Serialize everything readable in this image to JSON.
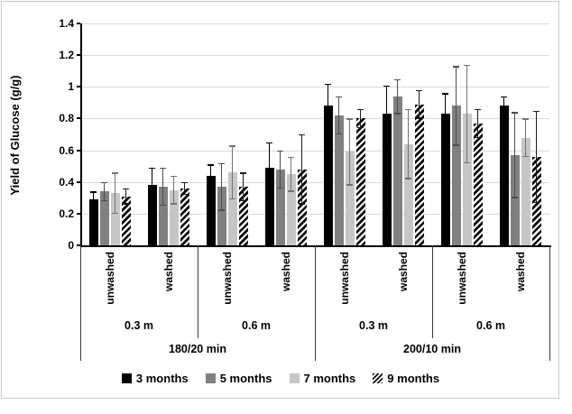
{
  "chart_data": {
    "type": "bar",
    "title": "",
    "ylabel": "Yield of Glucose (g/g)",
    "xlabel": "",
    "ylim": [
      0,
      1.4
    ],
    "ytick_step": 0.2,
    "ytick_labels": [
      "0",
      "0.2",
      "0.4",
      "0.6",
      "0.8",
      "1",
      "1.2",
      "1.4"
    ],
    "grid": "horizontal",
    "legend_position": "bottom",
    "error_bars": true,
    "category_levels": {
      "level1_wash": [
        "unwashed",
        "washed",
        "unwashed",
        "washed",
        "unwashed",
        "washed",
        "unwashed",
        "washed"
      ],
      "level2_height": [
        "0.3 m",
        "0.6 m",
        "0.3 m",
        "0.6 m"
      ],
      "level3_pretreatment": [
        "180/20 min",
        "200/10 min"
      ]
    },
    "series": [
      {
        "name": "3 months",
        "color": "#000000",
        "pattern": "solid",
        "error_color": "#000000",
        "values": [
          0.29,
          0.38,
          0.44,
          0.49,
          0.88,
          0.83,
          0.83,
          0.88
        ],
        "errors": [
          0.05,
          0.11,
          0.07,
          0.16,
          0.14,
          0.18,
          0.13,
          0.06
        ]
      },
      {
        "name": "5 months",
        "color": "#808080",
        "pattern": "solid",
        "error_color": "#4d4d4d",
        "values": [
          0.34,
          0.37,
          0.37,
          0.48,
          0.82,
          0.94,
          0.88,
          0.57
        ],
        "errors": [
          0.06,
          0.12,
          0.15,
          0.12,
          0.12,
          0.11,
          0.25,
          0.27
        ]
      },
      {
        "name": "7 months",
        "color": "#c6c6c6",
        "pattern": "solid",
        "error_color": "#737373",
        "values": [
          0.33,
          0.35,
          0.46,
          0.45,
          0.59,
          0.64,
          0.83,
          0.68
        ],
        "errors": [
          0.13,
          0.09,
          0.17,
          0.11,
          0.21,
          0.22,
          0.31,
          0.12
        ]
      },
      {
        "name": "9 months",
        "color": "#000000",
        "pattern": "diagonal-hatch",
        "error_color": "#1a1a1a",
        "values": [
          0.31,
          0.36,
          0.37,
          0.48,
          0.8,
          0.89,
          0.77,
          0.56
        ],
        "errors": [
          0.05,
          0.04,
          0.09,
          0.22,
          0.06,
          0.09,
          0.09,
          0.29
        ]
      }
    ]
  }
}
